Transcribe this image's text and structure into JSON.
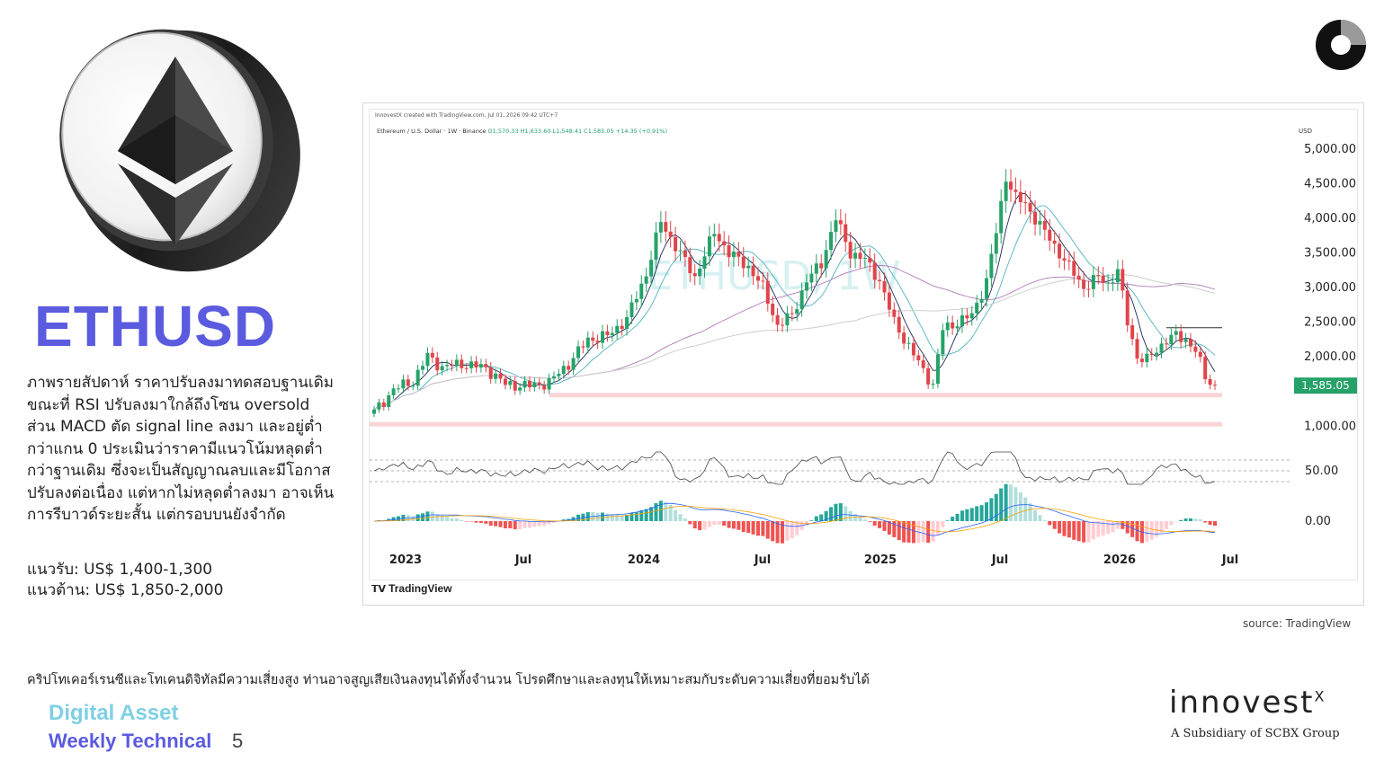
{
  "slide": {
    "title": "ETHUSD",
    "description": "ภาพรายสัปดาห์ ราคาปรับลงมาทดสอบฐานเดิม ขณะที่ RSI ปรับลงมาใกล้ถึงโซน oversold ส่วน MACD ตัด signal line ลงมา และอยู่ต่ำกว่าแกน 0 ประเมินว่าราคามีแนวโน้มหลุดต่ำกว่าฐานเดิม ซึ่งจะเป็นสัญญาณลบและมีโอกาสปรับลงต่อเนื่อง แต่หากไม่หลุดต่ำลงมา อาจเห็นการรีบาวด์ระยะสั้น แต่กรอบบนยังจำกัด",
    "support": "แนวรับ: US$ 1,400-1,300",
    "resistance": "แนวต้าน: US$ 1,850-2,000",
    "source": "source: TradingView",
    "disclaimer": "คริปโทเคอร์เรนซีและโทเคนดิจิทัลมีความเสี่ยงสูง ท่านอาจสูญเสียเงินลงทุนได้ทั้งจำนวน โปรดศึกษาและลงทุนให้เหมาะสมกับระดับความเสี่ยงที่ยอมรับได้",
    "footer_line1": "Digital Asset",
    "footer_line2": "Weekly Technical",
    "page_number": "5",
    "logo_word": "innovest",
    "logo_superscript": "X",
    "logo_sub": "A Subsidiary of SCBX Group"
  },
  "chart_header": {
    "meta": "InnovestX created with TradingView.com, Jul 01, 2026 09:42 UTC+7",
    "symbol": "Ethereum / U.S. Dollar · 1W · Binance",
    "ohlc": "O1,570.33 H1,633.60 L1,548.41 C1,585.05 +14.35 (+0.91%)",
    "watermark": "ETHUSD, 1W",
    "brand": "TradingView",
    "currency": "USD"
  },
  "chart_data": {
    "type": "candlestick",
    "price_axis_ticks": [
      {
        "value": 5000,
        "label": "5,000.00"
      },
      {
        "value": 4500,
        "label": "4,500.00"
      },
      {
        "value": 4000,
        "label": "4,000.00"
      },
      {
        "value": 3500,
        "label": "3,500.00"
      },
      {
        "value": 3000,
        "label": "3,000.00"
      },
      {
        "value": 2500,
        "label": "2,500.00"
      },
      {
        "value": 2000,
        "label": "2,000.00"
      },
      {
        "value": 1000,
        "label": "1,000.00"
      }
    ],
    "ylim": [
      900,
      5050
    ],
    "last_price": {
      "value": 1585.05,
      "label": "1,585.05"
    },
    "x_ticks": [
      "2023",
      "Jul",
      "2024",
      "Jul",
      "2025",
      "Jul",
      "2026",
      "Jul"
    ],
    "price_path": [
      [
        0,
        1200
      ],
      [
        4,
        1530
      ],
      [
        8,
        1650
      ],
      [
        11,
        2010
      ],
      [
        14,
        1850
      ],
      [
        18,
        1900
      ],
      [
        23,
        1840
      ],
      [
        27,
        1600
      ],
      [
        32,
        1580
      ],
      [
        36,
        1630
      ],
      [
        40,
        1900
      ],
      [
        44,
        2250
      ],
      [
        48,
        2300
      ],
      [
        52,
        2550
      ],
      [
        56,
        3200
      ],
      [
        59,
        3950
      ],
      [
        62,
        3600
      ],
      [
        66,
        3150
      ],
      [
        70,
        3800
      ],
      [
        73,
        3500
      ],
      [
        77,
        3300
      ],
      [
        80,
        3000
      ],
      [
        83,
        2450
      ],
      [
        86,
        2600
      ],
      [
        89,
        3100
      ],
      [
        92,
        3350
      ],
      [
        95,
        4000
      ],
      [
        98,
        3500
      ],
      [
        101,
        3400
      ],
      [
        104,
        3100
      ],
      [
        107,
        2500
      ],
      [
        110,
        2150
      ],
      [
        113,
        1800
      ],
      [
        115,
        1600
      ],
      [
        117,
        2400
      ],
      [
        120,
        2500
      ],
      [
        123,
        2600
      ],
      [
        126,
        3100
      ],
      [
        128,
        3800
      ],
      [
        130,
        4600
      ],
      [
        132,
        4300
      ],
      [
        134,
        4200
      ],
      [
        137,
        3900
      ],
      [
        140,
        3600
      ],
      [
        143,
        3300
      ],
      [
        146,
        3000
      ],
      [
        149,
        3150
      ],
      [
        151,
        3050
      ],
      [
        153,
        3250
      ],
      [
        155,
        2500
      ],
      [
        157,
        2000
      ],
      [
        159,
        1950
      ],
      [
        161,
        2100
      ],
      [
        163,
        2250
      ],
      [
        165,
        2300
      ],
      [
        167,
        2250
      ],
      [
        169,
        2100
      ],
      [
        171,
        1700
      ],
      [
        173,
        1585
      ]
    ],
    "support_zones": [
      [
        1430,
        1480
      ],
      [
        1010,
        1060
      ]
    ],
    "resistance_line": 2420,
    "rsi": {
      "label": "50.00",
      "levels": [
        70,
        50,
        30
      ]
    },
    "macd": {
      "label": "0.00"
    }
  }
}
